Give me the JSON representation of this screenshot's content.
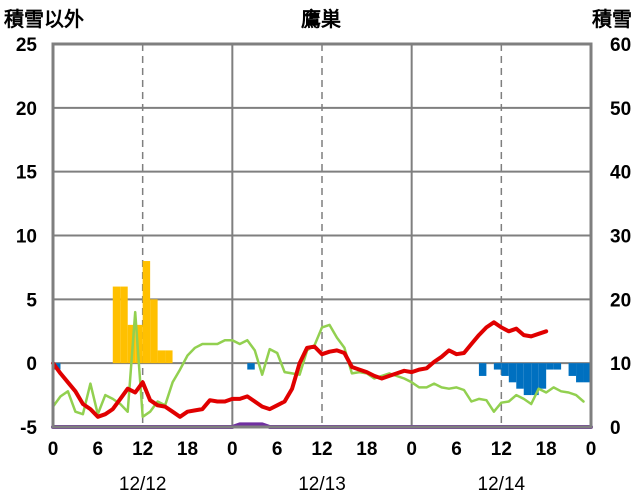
{
  "chart_data": {
    "type": "bar+line",
    "title": "鷹巣",
    "left_axis_label": "積雪以外",
    "right_axis_label": "積雪",
    "left_ylim": [
      -5,
      25
    ],
    "right_ylim": [
      0,
      60
    ],
    "left_ticks": [
      "25",
      "20",
      "15",
      "10",
      "5",
      "0",
      "-5"
    ],
    "right_ticks": [
      "60",
      "50",
      "40",
      "30",
      "20",
      "10",
      "0"
    ],
    "x_range_hours": [
      0,
      72
    ],
    "x_tick_labels": [
      "0",
      "6",
      "12",
      "18",
      "0",
      "6",
      "12",
      "18",
      "0",
      "6",
      "12",
      "18",
      "0"
    ],
    "date_labels": [
      "12/12",
      "12/13",
      "12/14"
    ],
    "grid": "dashed vertical at 12h, solid vertical at day boundaries, horizontal at left ticks",
    "colors": {
      "precip": "#ffc000",
      "snow_change": "#0070c0",
      "temp": "#e00000",
      "dewpoint": "#92d050",
      "snow_depth": "#7030a0",
      "grid": "#7f7f7f"
    },
    "precip": [
      [
        8,
        6
      ],
      [
        9,
        6
      ],
      [
        10,
        3
      ],
      [
        11,
        3
      ],
      [
        12,
        8
      ],
      [
        13,
        5
      ],
      [
        14,
        1
      ],
      [
        15,
        1
      ]
    ],
    "snow_change": [
      [
        0,
        -0.5
      ],
      [
        26,
        -0.5
      ],
      [
        57,
        -1
      ],
      [
        59,
        -0.5
      ],
      [
        60,
        -1
      ],
      [
        61,
        -1.5
      ],
      [
        62,
        -2
      ],
      [
        63,
        -2.5
      ],
      [
        64,
        -2.5
      ],
      [
        65,
        -2
      ],
      [
        66,
        -0.5
      ],
      [
        67,
        -0.5
      ],
      [
        69,
        -1
      ],
      [
        70,
        -1.5
      ],
      [
        71,
        -1.5
      ]
    ],
    "temperature": [
      [
        0,
        0
      ],
      [
        1,
        -0.8
      ],
      [
        2,
        -1.5
      ],
      [
        3,
        -2.2
      ],
      [
        4,
        -3.2
      ],
      [
        5,
        -3.6
      ],
      [
        6,
        -4.2
      ],
      [
        7,
        -4
      ],
      [
        8,
        -3.6
      ],
      [
        9,
        -2.8
      ],
      [
        10,
        -2
      ],
      [
        11,
        -2.3
      ],
      [
        12,
        -1.5
      ],
      [
        13,
        -2.9
      ],
      [
        14,
        -3.3
      ],
      [
        15,
        -3.4
      ],
      [
        16,
        -3.8
      ],
      [
        17,
        -4.2
      ],
      [
        18,
        -3.8
      ],
      [
        19,
        -3.7
      ],
      [
        20,
        -3.6
      ],
      [
        21,
        -2.9
      ],
      [
        22,
        -3
      ],
      [
        23,
        -3
      ],
      [
        24,
        -2.8
      ],
      [
        25,
        -2.8
      ],
      [
        26,
        -2.6
      ],
      [
        27,
        -3
      ],
      [
        28,
        -3.4
      ],
      [
        29,
        -3.6
      ],
      [
        30,
        -3.3
      ],
      [
        31,
        -3
      ],
      [
        32,
        -2
      ],
      [
        33,
        0
      ],
      [
        34,
        1.2
      ],
      [
        35,
        1.3
      ],
      [
        36,
        0.7
      ],
      [
        37,
        0.9
      ],
      [
        38,
        1
      ],
      [
        39,
        0.8
      ],
      [
        40,
        -0.3
      ],
      [
        41,
        -0.5
      ],
      [
        42,
        -0.7
      ],
      [
        43,
        -1
      ],
      [
        44,
        -1.2
      ],
      [
        45,
        -1
      ],
      [
        46,
        -0.8
      ],
      [
        47,
        -0.6
      ],
      [
        48,
        -0.7
      ],
      [
        49,
        -0.5
      ],
      [
        50,
        -0.4
      ],
      [
        51,
        0.1
      ],
      [
        52,
        0.5
      ],
      [
        53,
        1
      ],
      [
        54,
        0.7
      ],
      [
        55,
        0.8
      ],
      [
        56,
        1.5
      ],
      [
        57,
        2.2
      ],
      [
        58,
        2.8
      ],
      [
        59,
        3.2
      ],
      [
        60,
        2.8
      ],
      [
        61,
        2.5
      ],
      [
        62,
        2.7
      ],
      [
        63,
        2.2
      ],
      [
        64,
        2.1
      ],
      [
        65,
        2.3
      ],
      [
        66,
        2.5
      ]
    ],
    "dewpoint": [
      [
        0,
        -3.4
      ],
      [
        1,
        -2.6
      ],
      [
        2,
        -2.2
      ],
      [
        3,
        -3.8
      ],
      [
        4,
        -4
      ],
      [
        5,
        -1.6
      ],
      [
        6,
        -4
      ],
      [
        7,
        -2.5
      ],
      [
        8,
        -2.8
      ],
      [
        9,
        -3.2
      ],
      [
        10,
        -3.8
      ],
      [
        11,
        4
      ],
      [
        12,
        -4.2
      ],
      [
        13,
        -3.8
      ],
      [
        14,
        -3
      ],
      [
        15,
        -3.3
      ],
      [
        16,
        -1.5
      ],
      [
        17,
        -0.5
      ],
      [
        18,
        0.6
      ],
      [
        19,
        1.2
      ],
      [
        20,
        1.5
      ],
      [
        21,
        1.5
      ],
      [
        22,
        1.5
      ],
      [
        23,
        1.8
      ],
      [
        24,
        1.8
      ],
      [
        25,
        1.5
      ],
      [
        26,
        1.8
      ],
      [
        27,
        1
      ],
      [
        28,
        -0.9
      ],
      [
        29,
        1.1
      ],
      [
        30,
        0.8
      ],
      [
        31,
        -0.7
      ],
      [
        32,
        -0.8
      ],
      [
        33,
        -0.9
      ],
      [
        34,
        1
      ],
      [
        35,
        1.4
      ],
      [
        36,
        2.8
      ],
      [
        37,
        3
      ],
      [
        38,
        2
      ],
      [
        39,
        1.2
      ],
      [
        40,
        -0.8
      ],
      [
        41,
        -0.7
      ],
      [
        42,
        -0.8
      ],
      [
        43,
        -1.2
      ],
      [
        44,
        -1
      ],
      [
        45,
        -0.8
      ],
      [
        46,
        -1
      ],
      [
        47,
        -1.2
      ],
      [
        48,
        -1.5
      ],
      [
        49,
        -1.9
      ],
      [
        50,
        -1.9
      ],
      [
        51,
        -1.6
      ],
      [
        52,
        -1.9
      ],
      [
        53,
        -2
      ],
      [
        54,
        -1.9
      ],
      [
        55,
        -2.1
      ],
      [
        56,
        -3
      ],
      [
        57,
        -2.8
      ],
      [
        58,
        -2.9
      ],
      [
        59,
        -3.8
      ],
      [
        60,
        -3.1
      ],
      [
        61,
        -3
      ],
      [
        62,
        -2.5
      ],
      [
        63,
        -2.8
      ],
      [
        64,
        -3.2
      ],
      [
        65,
        -2
      ],
      [
        66,
        -2.3
      ],
      [
        67,
        -1.9
      ],
      [
        68,
        -2.2
      ],
      [
        69,
        -2.3
      ],
      [
        70,
        -2.5
      ],
      [
        71,
        -3
      ]
    ],
    "snow_depth": [
      [
        0,
        0
      ],
      [
        24,
        0
      ],
      [
        25,
        0.4
      ],
      [
        26,
        0.4
      ],
      [
        27,
        0.4
      ],
      [
        28,
        0.4
      ],
      [
        29,
        0
      ],
      [
        72,
        0
      ]
    ]
  }
}
